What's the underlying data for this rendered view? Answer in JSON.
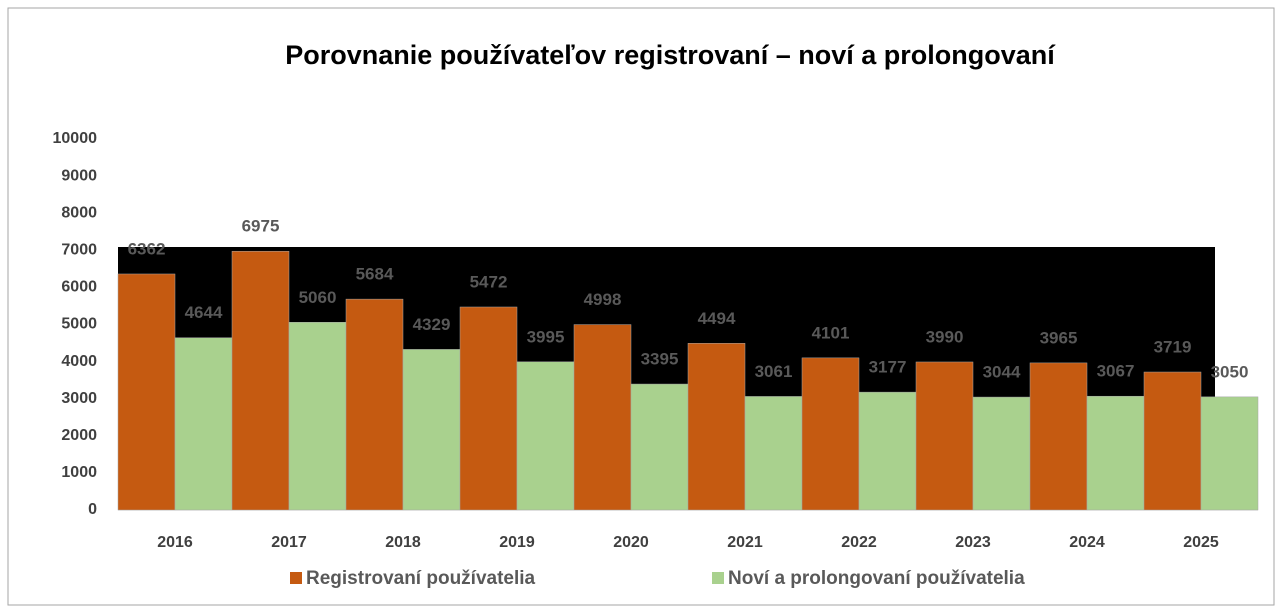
{
  "chart_data": {
    "type": "bar",
    "title": "Porovnanie používateľov registrovaní – noví a prolongovaní",
    "categories": [
      "2016",
      "2017",
      "2018",
      "2019",
      "2020",
      "2021",
      "2022",
      "2023",
      "2024",
      "2025"
    ],
    "series": [
      {
        "name": "Registrovaní používatelia",
        "color": "#c55a11",
        "values": [
          6362,
          6975,
          5684,
          5472,
          4998,
          4494,
          4101,
          3990,
          3965,
          3719
        ]
      },
      {
        "name": "Noví a prolongovaní používatelia",
        "color": "#a9d18e",
        "values": [
          4644,
          5060,
          4329,
          3995,
          3395,
          3061,
          3177,
          3044,
          3067,
          3050
        ]
      }
    ],
    "ylim": [
      0,
      10000
    ],
    "yticks": [
      0,
      1000,
      2000,
      3000,
      4000,
      5000,
      6000,
      7000,
      8000,
      9000,
      10000
    ],
    "grid": false,
    "legend": "bottom"
  }
}
